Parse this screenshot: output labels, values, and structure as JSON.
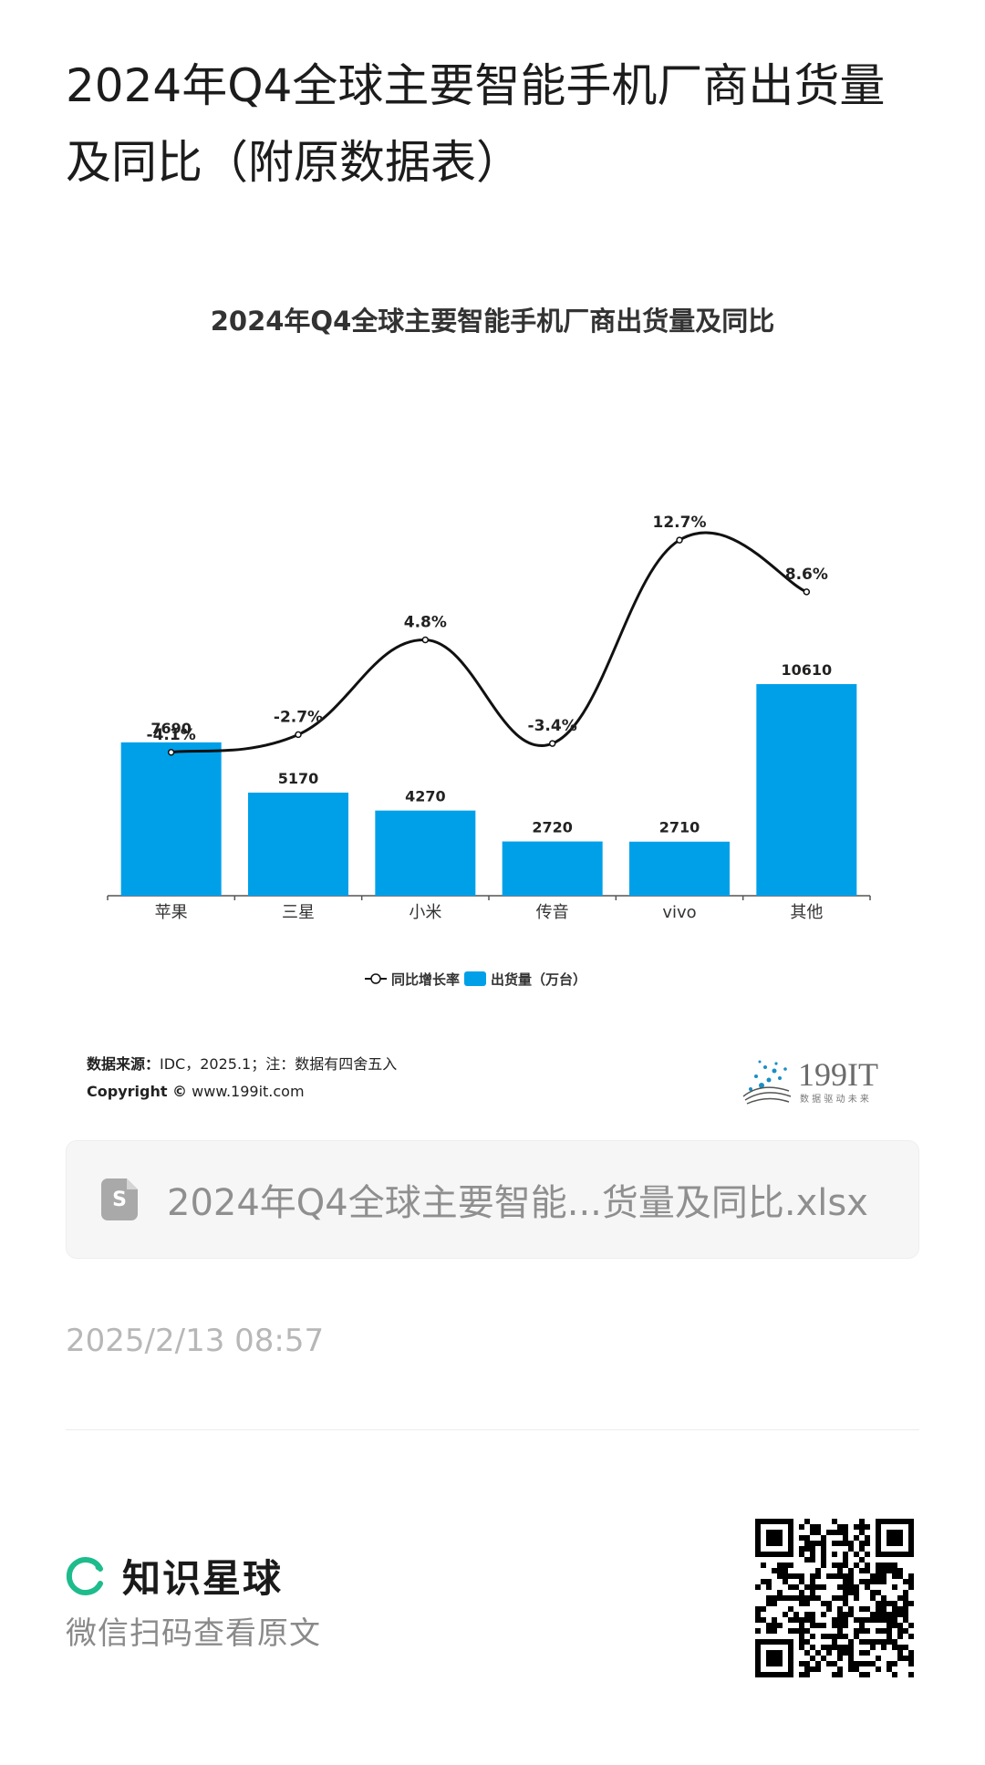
{
  "page": {
    "title": "2024年Q4全球主要智能手机厂商出货量及同比（附原数据表）"
  },
  "chart_data": {
    "type": "bar+line",
    "title": "2024年Q4全球主要智能手机厂商出货量及同比",
    "categories": [
      "苹果",
      "三星",
      "小米",
      "传音",
      "vivo",
      "其他"
    ],
    "series": [
      {
        "name": "出货量（万台）",
        "type": "bar",
        "values": [
          7690,
          5170,
          4270,
          2720,
          2710,
          10610
        ],
        "labels": [
          "7690",
          "5170",
          "4270",
          "2720",
          "2710",
          "10610"
        ]
      },
      {
        "name": "同比增长率",
        "type": "line",
        "values": [
          -4.1,
          -2.7,
          4.8,
          -3.4,
          12.7,
          8.6
        ],
        "labels": [
          "-4.1%",
          "-2.7%",
          "4.8%",
          "-3.4%",
          "12.7%",
          "8.6%"
        ]
      }
    ],
    "legend": [
      "同比增长率",
      "出货量（万台）"
    ],
    "legend_position": "bottom",
    "grid": false,
    "colors": {
      "bar": "#00a0e9",
      "line": "#111111"
    }
  },
  "footer": {
    "source_label": "数据来源：",
    "source_text": "IDC，2025.1；注：数据有四舍五入",
    "copyright_label": "Copyright ©",
    "copyright_text": "www.199it.com",
    "logo_text": "199IT",
    "logo_tagline": "数 据 驱 动 未 来"
  },
  "file": {
    "icon_letter": "S",
    "name": "2024年Q4全球主要智能...货量及同比.xlsx"
  },
  "timestamp": "2025/2/13 08:57",
  "brand": {
    "name": "知识星球",
    "scan_text": "微信扫码查看原文",
    "accent": "#1ebc8c"
  }
}
